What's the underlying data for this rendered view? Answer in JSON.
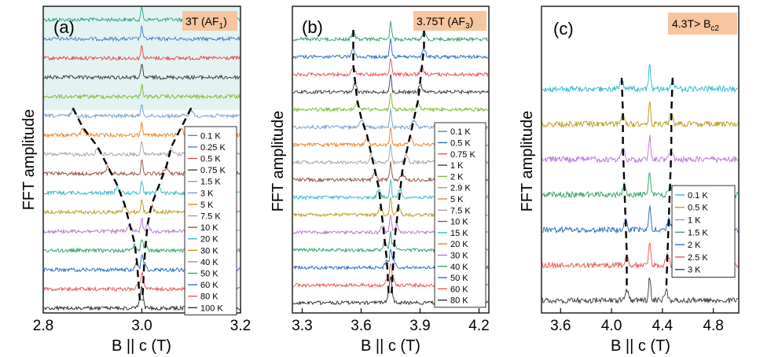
{
  "chart_data": [
    {
      "type": "line",
      "panel_label": "(a)",
      "field_label": "3T (AF",
      "field_sub": "1",
      "field_suffix": ")",
      "xlabel": "B || c (T)",
      "ylabel": "FFT amplitude",
      "xlim": [
        2.8,
        3.2
      ],
      "xticks": [
        "2.8",
        "3.0",
        "3.2"
      ],
      "xtick_values": [
        2.8,
        3.0,
        3.2
      ],
      "central_peak": 3.0,
      "shaded_top_traces": 5,
      "series": [
        {
          "name": "0.1 K",
          "color": "#1f9e8e",
          "split_peaks": null
        },
        {
          "name": "0.25 K",
          "color": "#3a7cc2",
          "split_peaks": null
        },
        {
          "name": "0.5 K",
          "color": "#d9434b",
          "split_peaks": null
        },
        {
          "name": "0.75 K",
          "color": "#333333",
          "split_peaks": null
        },
        {
          "name": "1.5 K",
          "color": "#76b82a",
          "split_peaks": null
        },
        {
          "name": "3 K",
          "color": "#6b9bd1",
          "split_peaks": [
            2.86,
            3.1
          ]
        },
        {
          "name": "5 K",
          "color": "#f07a1a",
          "split_peaks": [
            2.88,
            3.08
          ]
        },
        {
          "name": "7.5 K",
          "color": "#9e9e9e",
          "split_peaks": [
            2.91,
            3.06
          ]
        },
        {
          "name": "10 K",
          "color": "#8b4a3a",
          "split_peaks": [
            2.93,
            3.05
          ]
        },
        {
          "name": "20 K",
          "color": "#2ab5c6",
          "split_peaks": [
            2.95,
            3.035
          ]
        },
        {
          "name": "30 K",
          "color": "#b8960f",
          "split_peaks": [
            2.965,
            3.02
          ]
        },
        {
          "name": "40 K",
          "color": "#b56fd4",
          "split_peaks": [
            2.975,
            3.012
          ]
        },
        {
          "name": "50 K",
          "color": "#2a9d63",
          "split_peaks": [
            2.985,
            3.008
          ]
        },
        {
          "name": "60 K",
          "color": "#1e63c4",
          "split_peaks": [
            2.99,
            3.005
          ]
        },
        {
          "name": "80 K",
          "color": "#e84b4b",
          "split_peaks": [
            2.993,
            3.003
          ]
        },
        {
          "name": "100 K",
          "color": "#222222",
          "split_peaks": [
            2.996,
            3.001
          ]
        }
      ]
    },
    {
      "type": "line",
      "panel_label": "(b)",
      "field_label": "3.75T (AF",
      "field_sub": "3",
      "field_suffix": ")",
      "xlabel": "B || c (T)",
      "ylabel": "FFT amplitude",
      "xlim": [
        3.25,
        4.25
      ],
      "xticks": [
        "3.3",
        "3.6",
        "3.9",
        "4.2"
      ],
      "xtick_values": [
        3.3,
        3.6,
        3.9,
        4.2
      ],
      "central_peak": 3.75,
      "series": [
        {
          "name": "0.1 K",
          "color": "#2a9d63",
          "split_peaks": [
            3.56,
            3.92
          ]
        },
        {
          "name": "0.5 K",
          "color": "#1e63c4",
          "split_peaks": [
            3.56,
            3.92
          ]
        },
        {
          "name": "0.75 K",
          "color": "#e84b4b",
          "split_peaks": [
            3.56,
            3.91
          ]
        },
        {
          "name": "1 K",
          "color": "#333333",
          "split_peaks": [
            3.57,
            3.9
          ]
        },
        {
          "name": "2 K",
          "color": "#76b82a",
          "split_peaks": [
            3.58,
            3.89
          ]
        },
        {
          "name": "2.9 K",
          "color": "#6b9bd1",
          "split_peaks": [
            3.6,
            3.87
          ]
        },
        {
          "name": "5 K",
          "color": "#f07a1a",
          "split_peaks": [
            3.63,
            3.85
          ]
        },
        {
          "name": "7.5 K",
          "color": "#9e9e9e",
          "split_peaks": [
            3.65,
            3.83
          ]
        },
        {
          "name": "10 K",
          "color": "#8b4a3a",
          "split_peaks": [
            3.67,
            3.81
          ]
        },
        {
          "name": "15 K",
          "color": "#2ab5c6",
          "split_peaks": [
            3.69,
            3.8
          ]
        },
        {
          "name": "20 K",
          "color": "#b8960f",
          "split_peaks": [
            3.7,
            3.79
          ]
        },
        {
          "name": "30 K",
          "color": "#b56fd4",
          "split_peaks": [
            3.71,
            3.78
          ]
        },
        {
          "name": "40 K",
          "color": "#2a9d63",
          "split_peaks": [
            3.72,
            3.77
          ]
        },
        {
          "name": "50 K",
          "color": "#1e63c4",
          "split_peaks": [
            3.73,
            3.765
          ]
        },
        {
          "name": "60 K",
          "color": "#e84b4b",
          "split_peaks": [
            3.735,
            3.76
          ]
        },
        {
          "name": "80 K",
          "color": "#222222",
          "split_peaks": [
            3.74,
            3.755
          ]
        }
      ]
    },
    {
      "type": "line",
      "panel_label": "(c)",
      "field_label": "4.3T> B",
      "field_sub": "c2",
      "field_suffix": "",
      "xlabel": "B || c (T)",
      "ylabel": "FFT amplitude",
      "xlim": [
        3.45,
        5.0
      ],
      "xticks": [
        "3.6",
        "4.0",
        "4.4",
        "4.8"
      ],
      "xtick_values": [
        3.6,
        4.0,
        4.4,
        4.8
      ],
      "central_peak": 4.3,
      "series": [
        {
          "name": "0.1 K",
          "color": "#2ab5c6",
          "split_peaks": [
            4.08,
            4.48
          ]
        },
        {
          "name": "0.5 K",
          "color": "#b8960f",
          "split_peaks": [
            4.09,
            4.47
          ]
        },
        {
          "name": "1 K",
          "color": "#b56fd4",
          "split_peaks": [
            4.09,
            4.47
          ]
        },
        {
          "name": "1.5 K",
          "color": "#2a9d63",
          "split_peaks": [
            4.1,
            4.46
          ]
        },
        {
          "name": "2 K",
          "color": "#1e63c4",
          "split_peaks": [
            4.11,
            4.45
          ]
        },
        {
          "name": "2.5 K",
          "color": "#e84b4b",
          "split_peaks": [
            4.12,
            4.44
          ]
        },
        {
          "name": "3 K",
          "color": "#333333",
          "split_peaks": [
            4.12,
            4.43
          ]
        }
      ]
    }
  ]
}
